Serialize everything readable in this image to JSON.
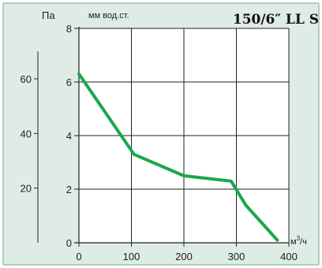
{
  "chart_data": {
    "type": "line",
    "title": "150/6″ LL S",
    "x_unit_base": "м",
    "x_unit_sup": "3",
    "x_unit_rest": "/ч",
    "y_unit_right": "мм вод.ст.",
    "y_unit_left": "Па",
    "xlim": [
      0,
      400
    ],
    "ylim": [
      0,
      8
    ],
    "x_ticks": [
      "0",
      "100",
      "200",
      "300",
      "400"
    ],
    "y_ticks_right": [
      "0",
      "2",
      "4",
      "6",
      "8"
    ],
    "y_ticks_left": [
      "20",
      "40",
      "60"
    ],
    "grid": true,
    "series": [
      {
        "x": [
          0,
          105,
          200,
          290,
          318,
          378
        ],
        "y": [
          6.3,
          3.3,
          2.5,
          2.3,
          1.4,
          0.1
        ]
      }
    ],
    "colors": {
      "background": "#dfece5",
      "border": "#9ec2ae",
      "grid": "#222222",
      "line": "#1aa84a"
    }
  }
}
